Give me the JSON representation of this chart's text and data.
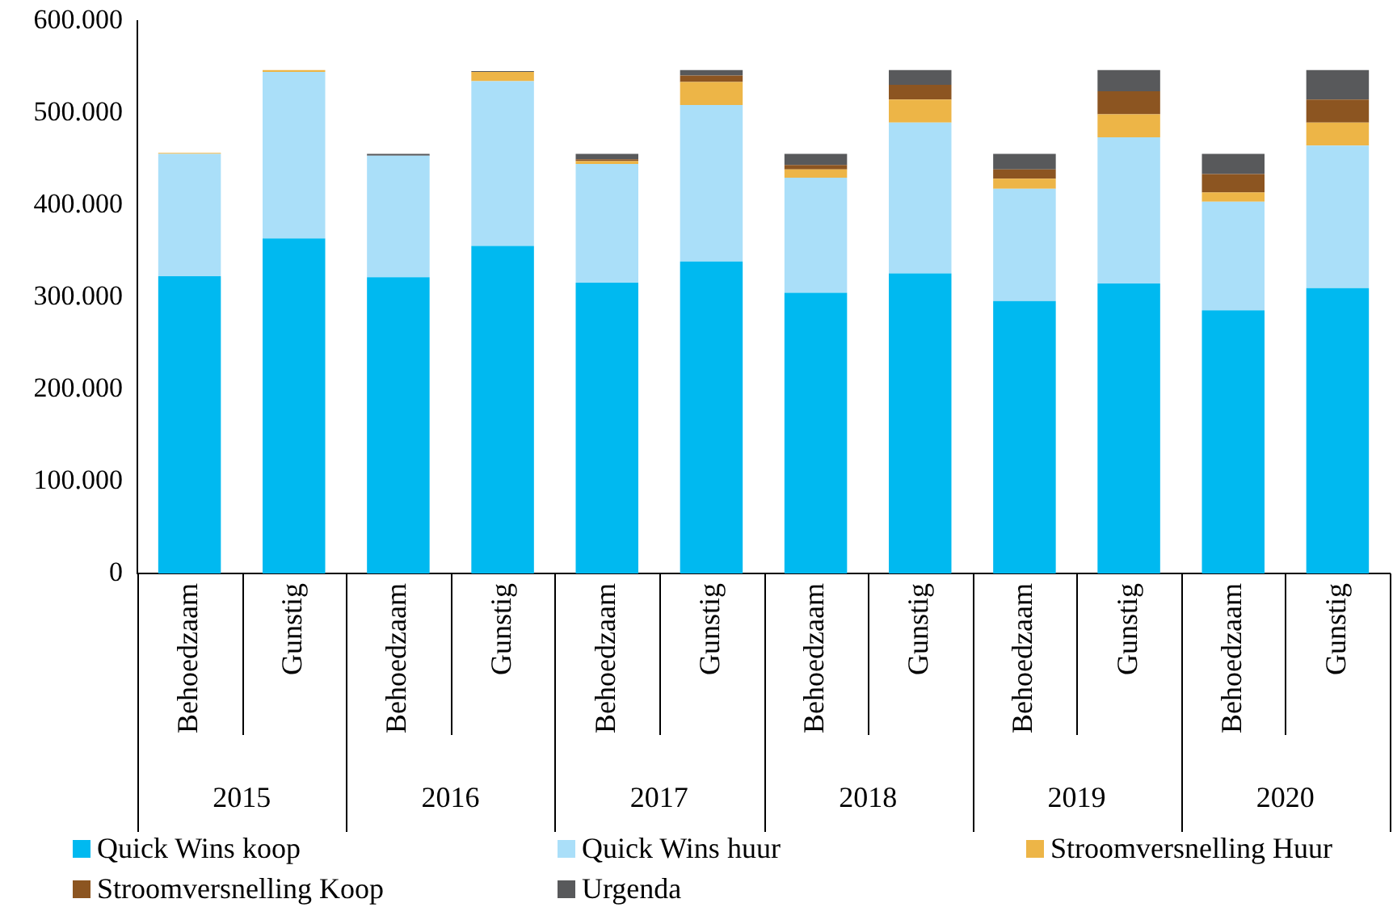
{
  "chart_data": {
    "type": "bar",
    "stacked": true,
    "legend": "bottom",
    "grid": false,
    "categories": [
      "Behoedzaam",
      "Gunstig",
      "Behoedzaam",
      "Gunstig",
      "Behoedzaam",
      "Gunstig",
      "Behoedzaam",
      "Gunstig",
      "Behoedzaam",
      "Gunstig",
      "Behoedzaam",
      "Gunstig"
    ],
    "annotations": [
      "2015",
      "2016",
      "2017",
      "2018",
      "2019",
      "2020"
    ],
    "ylim": [
      0,
      600000
    ],
    "yticks": [
      {
        "value": 0,
        "label": "0"
      },
      {
        "value": 100000,
        "label": "100.000"
      },
      {
        "value": 200000,
        "label": "200.000"
      },
      {
        "value": 300000,
        "label": "300.000"
      },
      {
        "value": 400000,
        "label": "400.000"
      },
      {
        "value": 500000,
        "label": "500.000"
      },
      {
        "value": 600000,
        "label": "600.000"
      }
    ],
    "series": [
      {
        "name": "Quick Wins koop",
        "color": "#00b9f0",
        "values": [
          323000,
          364000,
          322000,
          356000,
          316000,
          339000,
          305000,
          326000,
          296000,
          315000,
          286000,
          310000
        ]
      },
      {
        "name": "Quick Wins huur",
        "color": "#aadff9",
        "values": [
          133000,
          181000,
          132000,
          179000,
          129000,
          170000,
          125000,
          164000,
          122000,
          159000,
          118000,
          155000
        ]
      },
      {
        "name": "Stroomversnelling Huur",
        "color": "#edb547",
        "values": [
          1000,
          2000,
          0,
          10000,
          3000,
          25000,
          9000,
          25000,
          11000,
          25000,
          10000,
          25000
        ]
      },
      {
        "name": "Stroomversnelling Koop",
        "color": "#8c5521",
        "values": [
          0,
          0,
          0,
          0,
          2000,
          7000,
          5000,
          16000,
          10000,
          25000,
          20000,
          25000
        ]
      },
      {
        "name": "Urgenda",
        "color": "#58595b",
        "values": [
          0,
          0,
          2000,
          1000,
          6000,
          6000,
          12000,
          16000,
          17000,
          23000,
          22000,
          32000
        ]
      }
    ]
  }
}
